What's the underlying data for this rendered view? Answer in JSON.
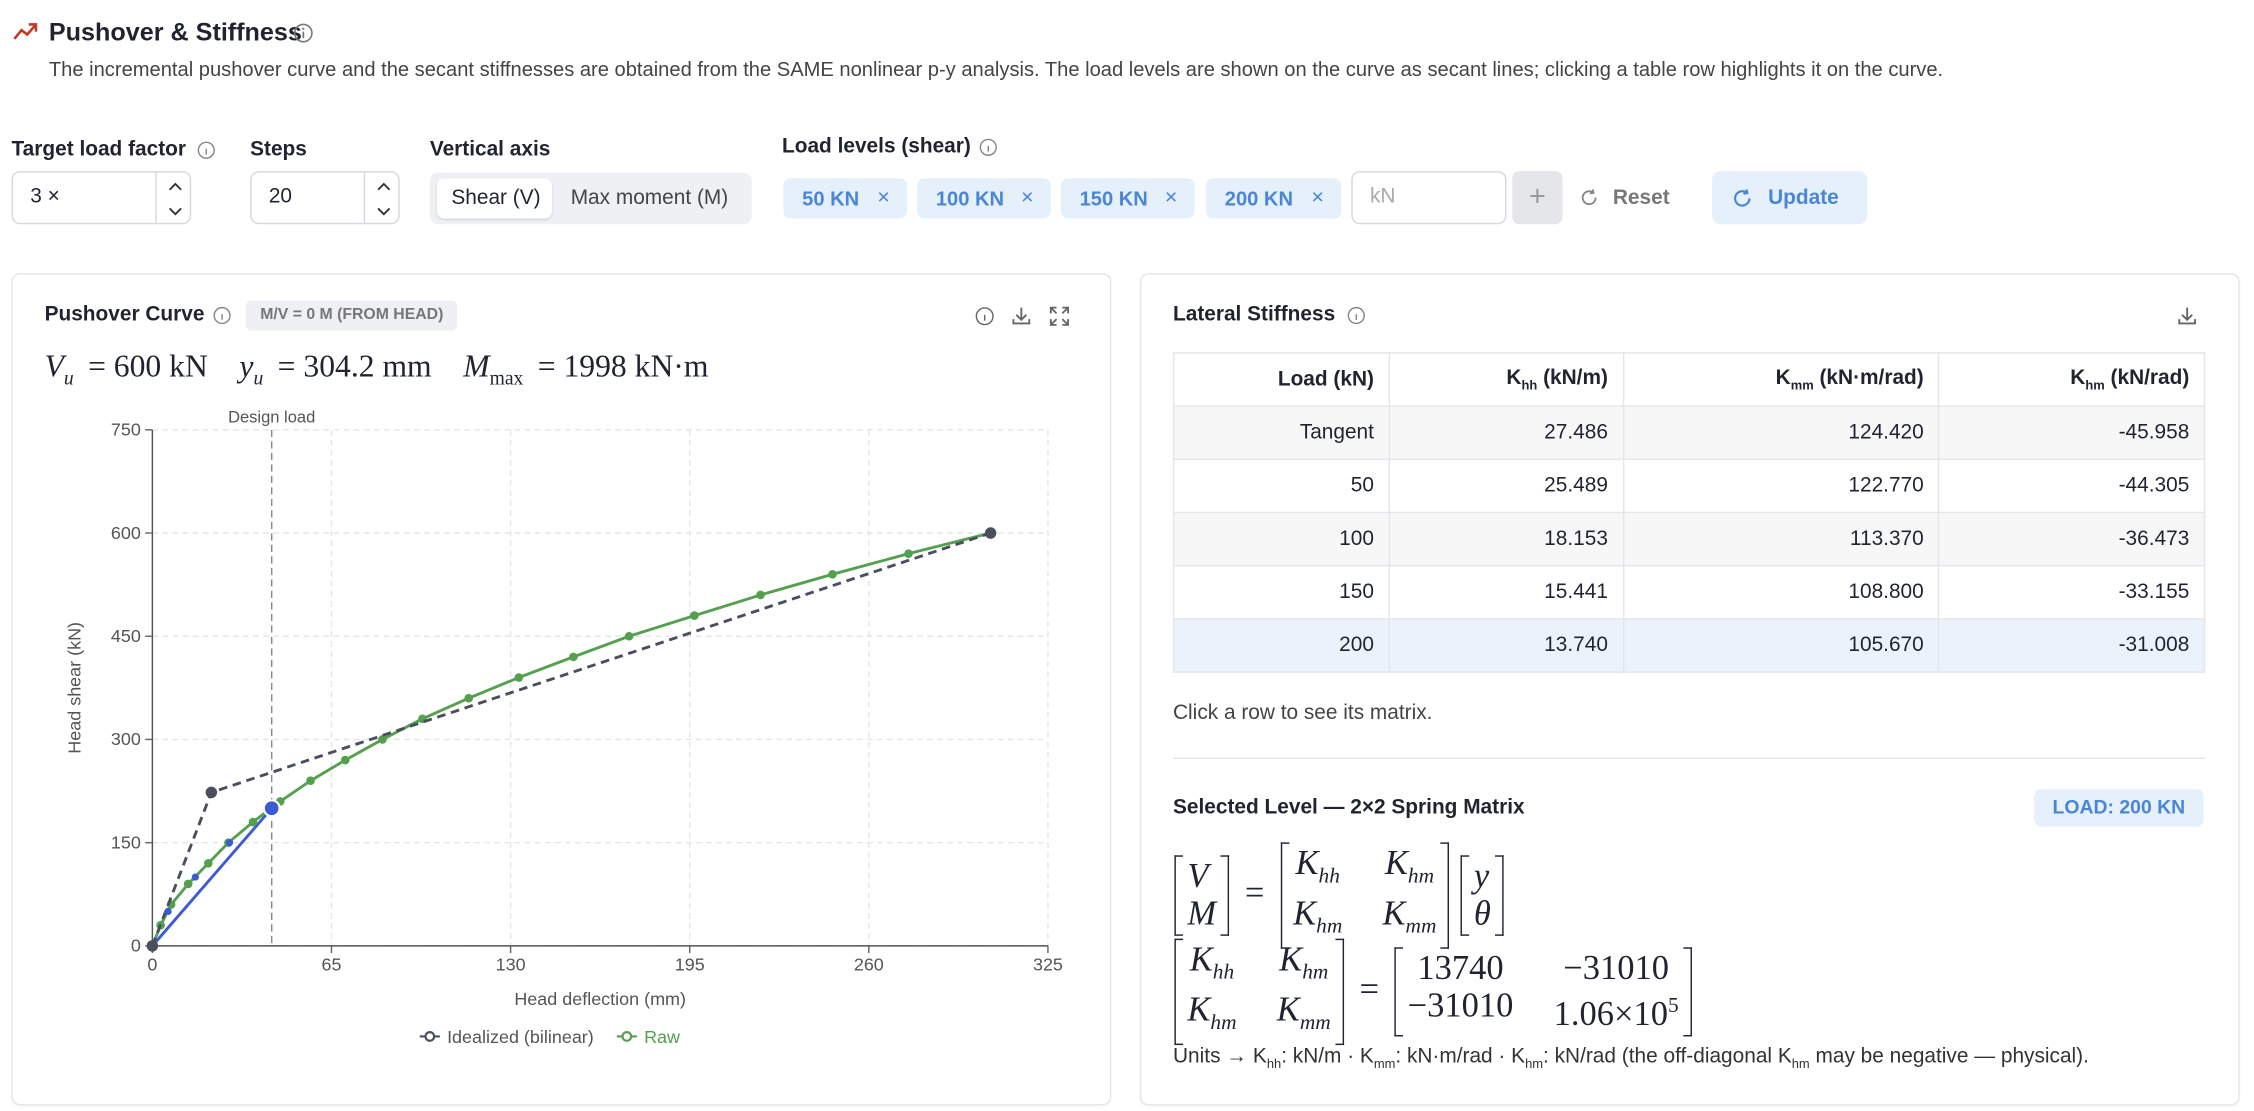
{
  "header": {
    "title": "Pushover & Stiffness",
    "description": "The incremental pushover curve and the secant stiffnesses are obtained from the SAME nonlinear p-y analysis. The load levels are shown on the curve as secant lines; clicking a table row highlights it on the curve."
  },
  "controls": {
    "target": {
      "label": "Target load factor",
      "value": "3 ×"
    },
    "steps": {
      "label": "Steps",
      "value": "20"
    },
    "axis": {
      "label": "Vertical axis",
      "options": [
        "Shear (V)",
        "Max moment (M)"
      ],
      "active": 0
    },
    "levels": {
      "label": "Load levels (shear)",
      "chips": [
        "50 KN",
        "100 KN",
        "150 KN",
        "200 KN"
      ],
      "placeholder": "kN",
      "add": "+",
      "reset": "Reset",
      "update": "Update"
    }
  },
  "chart_panel": {
    "title": "Pushover Curve",
    "badge": "M/V = 0 M (FROM HEAD)",
    "summary": [
      {
        "b": "V",
        "s": "u",
        "t": "= 600 kN"
      },
      {
        "b": "y",
        "s": "u",
        "t": "= 304.2 mm"
      },
      {
        "b": "M",
        "s": "max",
        "t": "= 1998 kN·m"
      }
    ]
  },
  "chart_data": {
    "type": "line",
    "x_label": "Head deflection (mm)",
    "y_label": "Head shear (kN)",
    "xlim": [
      0,
      325
    ],
    "xticks": [
      0,
      65,
      130,
      195,
      260,
      325
    ],
    "ylim": [
      0,
      750
    ],
    "yticks": [
      0,
      150,
      300,
      450,
      600,
      750
    ],
    "grid": true,
    "legend": "bottom",
    "annotation": {
      "text": "Design load",
      "x": 43.3
    },
    "series": [
      {
        "name": "Idealized (bilinear)",
        "color": "#4a4f5e",
        "dashed": true,
        "x": [
          0,
          21.4,
          304.2
        ],
        "values": [
          0,
          223,
          600
        ]
      },
      {
        "name": "Raw",
        "color": "#55a04f",
        "dashed": false,
        "x": [
          0,
          3,
          6.8,
          13,
          20.3,
          27.6,
          36.5,
          46.4,
          57.4,
          70,
          83.5,
          98,
          114.8,
          133,
          152.8,
          173,
          196.7,
          220.7,
          246.8,
          274.4,
          304.2
        ],
        "values": [
          0,
          30,
          60,
          90,
          120,
          150,
          180,
          210,
          240,
          270,
          300,
          330,
          360,
          390,
          420,
          450,
          480,
          510,
          540,
          570,
          600
        ]
      }
    ],
    "load_levels": {
      "color": "#3b5bd6",
      "x": [
        5.7,
        15.6,
        28,
        43.3
      ],
      "values": [
        50,
        100,
        150,
        200
      ],
      "selected": 3
    }
  },
  "table_panel": {
    "title": "Lateral Stiffness",
    "header": [
      {
        "t": "Load (kN)"
      },
      {
        "b": "K",
        "s": "hh",
        "t": " (kN/m)"
      },
      {
        "b": "K",
        "s": "mm",
        "t": " (kN·m/rad)"
      },
      {
        "b": "K",
        "s": "hm",
        "t": " (kN/rad)"
      }
    ],
    "rows": [
      [
        "Tangent",
        "27.486",
        "124.420",
        "-45.958"
      ],
      [
        "50",
        "25.489",
        "122.770",
        "-44.305"
      ],
      [
        "100",
        "18.153",
        "113.370",
        "-36.473"
      ],
      [
        "150",
        "15.441",
        "108.800",
        "-33.155"
      ],
      [
        "200",
        "13.740",
        "105.670",
        "-31.008"
      ]
    ],
    "selected_row": 4,
    "hint": "Click a row to see its matrix."
  },
  "matrix_panel": {
    "title": "Selected Level — 2×2 Spring Matrix",
    "badge": "LOAD: 200 KN",
    "equations": [
      {
        "parts": [
          {
            "matrix": [
              [
                {
                  "b": "V"
                }
              ],
              [
                {
                  "b": "M"
                }
              ]
            ]
          },
          {
            "op": "="
          },
          {
            "matrix": [
              [
                {
                  "b": "K",
                  "s": "hh"
                },
                {
                  "b": "K",
                  "s": "hm"
                }
              ],
              [
                {
                  "b": "K",
                  "s": "hm"
                },
                {
                  "b": "K",
                  "s": "mm"
                }
              ]
            ]
          },
          {
            "matrix": [
              [
                {
                  "b": "y"
                }
              ],
              [
                {
                  "b": "θ"
                }
              ]
            ]
          }
        ]
      },
      {
        "parts": [
          {
            "matrix": [
              [
                {
                  "b": "K",
                  "s": "hh"
                },
                {
                  "b": "K",
                  "s": "hm"
                }
              ],
              [
                {
                  "b": "K",
                  "s": "hm"
                },
                {
                  "b": "K",
                  "s": "mm"
                }
              ]
            ]
          },
          {
            "op": "="
          },
          {
            "matrix": [
              [
                {
                  "b": "13740"
                },
                {
                  "b": "−31010"
                }
              ],
              [
                {
                  "b": "−31010"
                },
                {
                  "b": "1.06×10",
                  "sup": "5"
                }
              ]
            ]
          }
        ]
      }
    ],
    "units": [
      {
        "t": "Units → K"
      },
      {
        "s": "hh"
      },
      {
        "t": ": kN/m · K"
      },
      {
        "s": "mm"
      },
      {
        "t": ": kN·m/rad · K"
      },
      {
        "s": "hm"
      },
      {
        "t": ": kN/rad (the off-diagonal K"
      },
      {
        "s": "hm"
      },
      {
        "t": " may be negative — physical)."
      }
    ]
  }
}
